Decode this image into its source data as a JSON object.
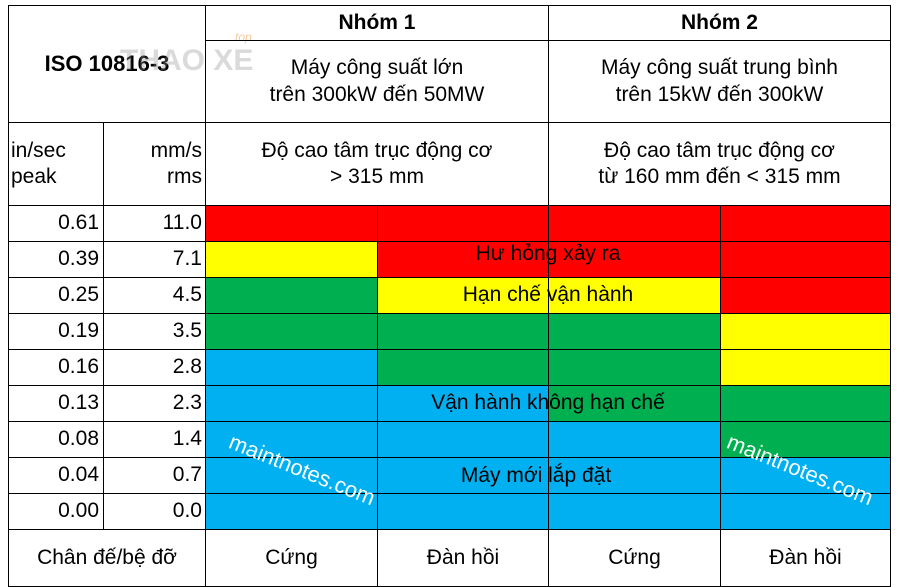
{
  "header": {
    "standard": "ISO 10816-3",
    "watermark_logo": "THAO XE",
    "watermark_small": "top",
    "groups": [
      {
        "name": "Nhóm 1",
        "desc": [
          "Máy công suất lớn",
          "trên 300kW đến 50MW"
        ],
        "height": [
          "Độ cao tâm trục động cơ",
          "> 315 mm"
        ]
      },
      {
        "name": "Nhóm 2",
        "desc": [
          "Máy công suất trung bình",
          "trên 15kW đến 300kW"
        ],
        "height": [
          "Độ cao tâm trục động cơ",
          "từ 160 mm đến < 315 mm"
        ]
      }
    ],
    "unit1": [
      "in/sec",
      "peak"
    ],
    "unit2": [
      "mm/s",
      "rms"
    ]
  },
  "colors": {
    "R": "#ff0000",
    "Y": "#ffff00",
    "G": "#00b050",
    "B": "#00b0f0"
  },
  "rows": [
    {
      "in_sec": "0.61",
      "mm_s": "11.0",
      "zones": [
        "R",
        "R",
        "R",
        "R"
      ]
    },
    {
      "in_sec": "0.39",
      "mm_s": "7.1",
      "zones": [
        "Y",
        "R",
        "R",
        "R"
      ]
    },
    {
      "in_sec": "0.25",
      "mm_s": "4.5",
      "zones": [
        "G",
        "Y",
        "Y",
        "R"
      ]
    },
    {
      "in_sec": "0.19",
      "mm_s": "3.5",
      "zones": [
        "G",
        "G",
        "G",
        "Y"
      ]
    },
    {
      "in_sec": "0.16",
      "mm_s": "2.8",
      "zones": [
        "B",
        "G",
        "G",
        "Y"
      ]
    },
    {
      "in_sec": "0.13",
      "mm_s": "2.3",
      "zones": [
        "B",
        "B",
        "G",
        "G"
      ]
    },
    {
      "in_sec": "0.08",
      "mm_s": "1.4",
      "zones": [
        "B",
        "B",
        "B",
        "G"
      ]
    },
    {
      "in_sec": "0.04",
      "mm_s": "0.7",
      "zones": [
        "B",
        "B",
        "B",
        "B"
      ]
    },
    {
      "in_sec": "0.00",
      "mm_s": "0.0",
      "zones": [
        "B",
        "B",
        "B",
        "B"
      ]
    }
  ],
  "zone_labels": [
    "Hư hỏng xảy ra",
    "Hạn chế vận hành",
    "Vận hành không hạn chế",
    "Máy mới lắp đặt"
  ],
  "watermarks": [
    "maintnotes.com",
    "maintnotes.com"
  ],
  "footer": [
    "Chân đế/bệ đỡ",
    "Cứng",
    "Đàn hồi",
    "Cứng",
    "Đàn hồi"
  ]
}
